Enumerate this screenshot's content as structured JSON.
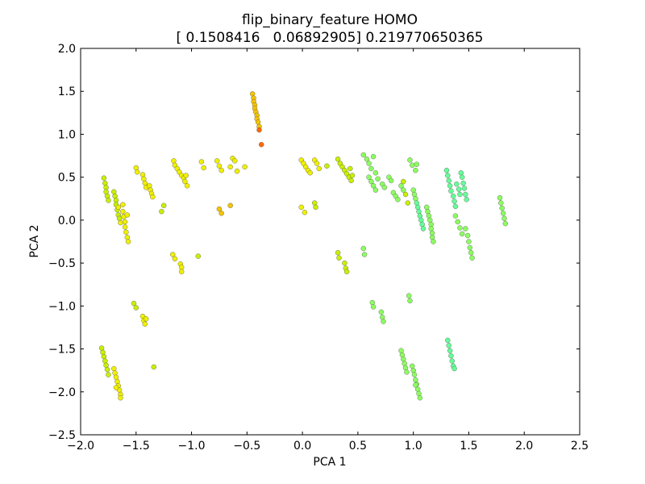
{
  "chart_data": {
    "type": "scatter",
    "title": "flip_binary_feature HOMO",
    "subtitle": "[ 0.1508416   0.06892905] 0.219770650365",
    "xlabel": "PCA 1",
    "ylabel": "PCA 2",
    "xlim": [
      -2.0,
      2.5
    ],
    "ylim": [
      -2.5,
      2.0
    ],
    "grid": false,
    "xticks": [
      "−2.0",
      "−1.5",
      "−1.0",
      "−0.5",
      "0.0",
      "0.5",
      "1.0",
      "1.5",
      "2.0",
      "2.5"
    ],
    "yticks": [
      "−2.5",
      "−2.0",
      "−1.5",
      "−1.0",
      "−0.5",
      "0.0",
      "0.5",
      "1.0",
      "1.5",
      "2.0"
    ],
    "colors": {
      "orange": "#ff6a00",
      "yellow_orange": "#f5c400",
      "yellow": "#f0f000",
      "yellow_green": "#c8f000",
      "green": "#8cff60",
      "teal_green": "#66ff99"
    },
    "points": [
      {
        "x": -0.45,
        "y": 1.47,
        "c": "yellow_orange"
      },
      {
        "x": -0.44,
        "y": 1.42,
        "c": "yellow_orange"
      },
      {
        "x": -0.44,
        "y": 1.38,
        "c": "yellow_orange"
      },
      {
        "x": -0.43,
        "y": 1.34,
        "c": "yellow_orange"
      },
      {
        "x": -0.43,
        "y": 1.3,
        "c": "yellow_orange"
      },
      {
        "x": -0.42,
        "y": 1.26,
        "c": "yellow_orange"
      },
      {
        "x": -0.41,
        "y": 1.22,
        "c": "yellow_orange"
      },
      {
        "x": -0.41,
        "y": 1.18,
        "c": "yellow_orange"
      },
      {
        "x": -0.4,
        "y": 1.14,
        "c": "yellow_orange"
      },
      {
        "x": -0.39,
        "y": 1.09,
        "c": "yellow_orange"
      },
      {
        "x": -0.39,
        "y": 1.05,
        "c": "orange"
      },
      {
        "x": -0.37,
        "y": 0.88,
        "c": "orange"
      },
      {
        "x": -1.79,
        "y": 0.49,
        "c": "yellow_green"
      },
      {
        "x": -1.78,
        "y": 0.43,
        "c": "yellow_green"
      },
      {
        "x": -1.77,
        "y": 0.38,
        "c": "yellow_green"
      },
      {
        "x": -1.77,
        "y": 0.33,
        "c": "yellow_green"
      },
      {
        "x": -1.76,
        "y": 0.28,
        "c": "yellow_green"
      },
      {
        "x": -1.75,
        "y": 0.23,
        "c": "yellow_green"
      },
      {
        "x": -1.7,
        "y": 0.33,
        "c": "yellow_green"
      },
      {
        "x": -1.69,
        "y": 0.28,
        "c": "yellow_green"
      },
      {
        "x": -1.68,
        "y": 0.23,
        "c": "yellow_green"
      },
      {
        "x": -1.68,
        "y": 0.18,
        "c": "yellow_green"
      },
      {
        "x": -1.67,
        "y": 0.12,
        "c": "yellow_green"
      },
      {
        "x": -1.66,
        "y": 0.06,
        "c": "yellow_green"
      },
      {
        "x": -1.65,
        "y": 0.02,
        "c": "yellow_green"
      },
      {
        "x": -1.66,
        "y": 0.15,
        "c": "yellow"
      },
      {
        "x": -1.64,
        "y": -0.03,
        "c": "yellow"
      },
      {
        "x": -1.62,
        "y": 0.1,
        "c": "yellow"
      },
      {
        "x": -1.61,
        "y": 0.04,
        "c": "yellow"
      },
      {
        "x": -1.6,
        "y": -0.02,
        "c": "yellow"
      },
      {
        "x": -1.6,
        "y": -0.08,
        "c": "yellow"
      },
      {
        "x": -1.59,
        "y": -0.14,
        "c": "yellow"
      },
      {
        "x": -1.58,
        "y": -0.2,
        "c": "yellow"
      },
      {
        "x": -1.57,
        "y": -0.25,
        "c": "yellow"
      },
      {
        "x": -1.62,
        "y": 0.18,
        "c": "yellow"
      },
      {
        "x": -1.58,
        "y": 0.06,
        "c": "yellow"
      },
      {
        "x": -1.5,
        "y": 0.61,
        "c": "yellow"
      },
      {
        "x": -1.49,
        "y": 0.56,
        "c": "yellow"
      },
      {
        "x": -1.44,
        "y": 0.53,
        "c": "yellow"
      },
      {
        "x": -1.43,
        "y": 0.48,
        "c": "yellow"
      },
      {
        "x": -1.42,
        "y": 0.43,
        "c": "yellow"
      },
      {
        "x": -1.41,
        "y": 0.38,
        "c": "yellow"
      },
      {
        "x": -1.38,
        "y": 0.4,
        "c": "yellow"
      },
      {
        "x": -1.37,
        "y": 0.35,
        "c": "yellow"
      },
      {
        "x": -1.36,
        "y": 0.31,
        "c": "yellow"
      },
      {
        "x": -1.35,
        "y": 0.27,
        "c": "yellow"
      },
      {
        "x": -1.25,
        "y": 0.17,
        "c": "yellow_green"
      },
      {
        "x": -1.27,
        "y": 0.1,
        "c": "yellow_green"
      },
      {
        "x": -1.16,
        "y": 0.69,
        "c": "yellow"
      },
      {
        "x": -1.15,
        "y": 0.64,
        "c": "yellow"
      },
      {
        "x": -1.13,
        "y": 0.6,
        "c": "yellow"
      },
      {
        "x": -1.11,
        "y": 0.56,
        "c": "yellow"
      },
      {
        "x": -1.09,
        "y": 0.52,
        "c": "yellow"
      },
      {
        "x": -1.07,
        "y": 0.49,
        "c": "yellow"
      },
      {
        "x": -1.05,
        "y": 0.52,
        "c": "yellow"
      },
      {
        "x": -1.06,
        "y": 0.45,
        "c": "yellow"
      },
      {
        "x": -1.04,
        "y": 0.4,
        "c": "yellow"
      },
      {
        "x": -0.91,
        "y": 0.68,
        "c": "yellow"
      },
      {
        "x": -0.89,
        "y": 0.61,
        "c": "yellow"
      },
      {
        "x": -0.77,
        "y": 0.69,
        "c": "yellow"
      },
      {
        "x": -0.75,
        "y": 0.63,
        "c": "yellow"
      },
      {
        "x": -0.73,
        "y": 0.58,
        "c": "yellow"
      },
      {
        "x": -0.63,
        "y": 0.72,
        "c": "yellow"
      },
      {
        "x": -0.61,
        "y": 0.69,
        "c": "yellow"
      },
      {
        "x": -0.65,
        "y": 0.62,
        "c": "yellow"
      },
      {
        "x": -0.59,
        "y": 0.57,
        "c": "yellow"
      },
      {
        "x": -0.52,
        "y": 0.62,
        "c": "yellow"
      },
      {
        "x": -0.75,
        "y": 0.13,
        "c": "yellow_orange"
      },
      {
        "x": -0.73,
        "y": 0.08,
        "c": "yellow_orange"
      },
      {
        "x": -0.65,
        "y": 0.17,
        "c": "yellow_orange"
      },
      {
        "x": -1.17,
        "y": -0.4,
        "c": "yellow"
      },
      {
        "x": -1.15,
        "y": -0.45,
        "c": "yellow"
      },
      {
        "x": -1.1,
        "y": -0.51,
        "c": "yellow"
      },
      {
        "x": -1.09,
        "y": -0.55,
        "c": "yellow"
      },
      {
        "x": -1.09,
        "y": -0.6,
        "c": "yellow"
      },
      {
        "x": -0.94,
        "y": -0.42,
        "c": "yellow_green"
      },
      {
        "x": -1.52,
        "y": -0.97,
        "c": "yellow_green"
      },
      {
        "x": -1.5,
        "y": -1.02,
        "c": "yellow_green"
      },
      {
        "x": -1.44,
        "y": -1.12,
        "c": "yellow"
      },
      {
        "x": -1.43,
        "y": -1.17,
        "c": "yellow"
      },
      {
        "x": -1.42,
        "y": -1.21,
        "c": "yellow"
      },
      {
        "x": -1.41,
        "y": -1.15,
        "c": "yellow"
      },
      {
        "x": -1.34,
        "y": -1.71,
        "c": "yellow_green"
      },
      {
        "x": -1.81,
        "y": -1.49,
        "c": "yellow_green"
      },
      {
        "x": -1.8,
        "y": -1.54,
        "c": "yellow_green"
      },
      {
        "x": -1.79,
        "y": -1.59,
        "c": "yellow_green"
      },
      {
        "x": -1.78,
        "y": -1.64,
        "c": "yellow_green"
      },
      {
        "x": -1.77,
        "y": -1.69,
        "c": "yellow_green"
      },
      {
        "x": -1.76,
        "y": -1.74,
        "c": "yellow_green"
      },
      {
        "x": -1.75,
        "y": -1.8,
        "c": "yellow_green"
      },
      {
        "x": -1.7,
        "y": -1.73,
        "c": "yellow"
      },
      {
        "x": -1.69,
        "y": -1.78,
        "c": "yellow"
      },
      {
        "x": -1.68,
        "y": -1.83,
        "c": "yellow"
      },
      {
        "x": -1.67,
        "y": -1.88,
        "c": "yellow"
      },
      {
        "x": -1.66,
        "y": -1.93,
        "c": "yellow"
      },
      {
        "x": -1.65,
        "y": -1.98,
        "c": "yellow"
      },
      {
        "x": -1.64,
        "y": -2.03,
        "c": "yellow"
      },
      {
        "x": -1.64,
        "y": -2.07,
        "c": "yellow"
      },
      {
        "x": -1.68,
        "y": -1.95,
        "c": "yellow"
      },
      {
        "x": -0.01,
        "y": 0.7,
        "c": "yellow"
      },
      {
        "x": 0.01,
        "y": 0.66,
        "c": "yellow"
      },
      {
        "x": 0.03,
        "y": 0.62,
        "c": "yellow"
      },
      {
        "x": 0.05,
        "y": 0.58,
        "c": "yellow"
      },
      {
        "x": 0.07,
        "y": 0.55,
        "c": "yellow"
      },
      {
        "x": 0.11,
        "y": 0.7,
        "c": "yellow"
      },
      {
        "x": 0.13,
        "y": 0.66,
        "c": "yellow"
      },
      {
        "x": 0.15,
        "y": 0.6,
        "c": "yellow"
      },
      {
        "x": 0.22,
        "y": 0.63,
        "c": "yellow_green"
      },
      {
        "x": -0.01,
        "y": 0.15,
        "c": "yellow"
      },
      {
        "x": 0.02,
        "y": 0.09,
        "c": "yellow"
      },
      {
        "x": 0.11,
        "y": 0.2,
        "c": "yellow_green"
      },
      {
        "x": 0.12,
        "y": 0.15,
        "c": "yellow_green"
      },
      {
        "x": 0.32,
        "y": 0.71,
        "c": "yellow_green"
      },
      {
        "x": 0.34,
        "y": 0.66,
        "c": "yellow_green"
      },
      {
        "x": 0.36,
        "y": 0.62,
        "c": "yellow_green"
      },
      {
        "x": 0.38,
        "y": 0.58,
        "c": "yellow_green"
      },
      {
        "x": 0.4,
        "y": 0.54,
        "c": "yellow_green"
      },
      {
        "x": 0.42,
        "y": 0.5,
        "c": "yellow_green"
      },
      {
        "x": 0.44,
        "y": 0.46,
        "c": "yellow_green"
      },
      {
        "x": 0.45,
        "y": 0.52,
        "c": "yellow_green"
      },
      {
        "x": 0.43,
        "y": 0.6,
        "c": "yellow_green"
      },
      {
        "x": 0.55,
        "y": 0.76,
        "c": "green"
      },
      {
        "x": 0.58,
        "y": 0.71,
        "c": "green"
      },
      {
        "x": 0.6,
        "y": 0.66,
        "c": "green"
      },
      {
        "x": 0.62,
        "y": 0.6,
        "c": "green"
      },
      {
        "x": 0.64,
        "y": 0.74,
        "c": "green"
      },
      {
        "x": 0.66,
        "y": 0.55,
        "c": "green"
      },
      {
        "x": 0.68,
        "y": 0.48,
        "c": "green"
      },
      {
        "x": 0.6,
        "y": 0.5,
        "c": "green"
      },
      {
        "x": 0.62,
        "y": 0.45,
        "c": "green"
      },
      {
        "x": 0.64,
        "y": 0.4,
        "c": "green"
      },
      {
        "x": 0.66,
        "y": 0.35,
        "c": "green"
      },
      {
        "x": 0.72,
        "y": 0.42,
        "c": "green"
      },
      {
        "x": 0.74,
        "y": 0.38,
        "c": "green"
      },
      {
        "x": 0.78,
        "y": 0.5,
        "c": "green"
      },
      {
        "x": 0.8,
        "y": 0.46,
        "c": "green"
      },
      {
        "x": 0.82,
        "y": 0.32,
        "c": "green"
      },
      {
        "x": 0.84,
        "y": 0.28,
        "c": "green"
      },
      {
        "x": 0.86,
        "y": 0.24,
        "c": "green"
      },
      {
        "x": 0.89,
        "y": 0.4,
        "c": "green"
      },
      {
        "x": 0.91,
        "y": 0.35,
        "c": "green"
      },
      {
        "x": 0.91,
        "y": 0.45,
        "c": "yellow_green"
      },
      {
        "x": 0.93,
        "y": 0.3,
        "c": "yellow_green"
      },
      {
        "x": 0.95,
        "y": 0.2,
        "c": "yellow_green"
      },
      {
        "x": 0.97,
        "y": 0.7,
        "c": "green"
      },
      {
        "x": 0.99,
        "y": 0.64,
        "c": "green"
      },
      {
        "x": 1.02,
        "y": 0.58,
        "c": "green"
      },
      {
        "x": 1.03,
        "y": 0.65,
        "c": "green"
      },
      {
        "x": 1.0,
        "y": 0.35,
        "c": "green"
      },
      {
        "x": 1.01,
        "y": 0.3,
        "c": "green"
      },
      {
        "x": 1.02,
        "y": 0.25,
        "c": "green"
      },
      {
        "x": 1.03,
        "y": 0.2,
        "c": "teal_green"
      },
      {
        "x": 1.04,
        "y": 0.15,
        "c": "teal_green"
      },
      {
        "x": 1.05,
        "y": 0.1,
        "c": "teal_green"
      },
      {
        "x": 1.06,
        "y": 0.05,
        "c": "teal_green"
      },
      {
        "x": 1.07,
        "y": 0.0,
        "c": "teal_green"
      },
      {
        "x": 1.08,
        "y": -0.05,
        "c": "teal_green"
      },
      {
        "x": 1.09,
        "y": -0.1,
        "c": "teal_green"
      },
      {
        "x": 1.12,
        "y": 0.15,
        "c": "green"
      },
      {
        "x": 1.13,
        "y": 0.1,
        "c": "green"
      },
      {
        "x": 1.14,
        "y": 0.05,
        "c": "green"
      },
      {
        "x": 1.15,
        "y": 0.0,
        "c": "green"
      },
      {
        "x": 1.16,
        "y": -0.05,
        "c": "green"
      },
      {
        "x": 1.16,
        "y": -0.1,
        "c": "green"
      },
      {
        "x": 1.17,
        "y": -0.15,
        "c": "green"
      },
      {
        "x": 1.17,
        "y": -0.2,
        "c": "green"
      },
      {
        "x": 1.18,
        "y": -0.25,
        "c": "green"
      },
      {
        "x": 1.3,
        "y": 0.58,
        "c": "teal_green"
      },
      {
        "x": 1.31,
        "y": 0.52,
        "c": "teal_green"
      },
      {
        "x": 1.32,
        "y": 0.46,
        "c": "teal_green"
      },
      {
        "x": 1.33,
        "y": 0.4,
        "c": "teal_green"
      },
      {
        "x": 1.34,
        "y": 0.34,
        "c": "teal_green"
      },
      {
        "x": 1.36,
        "y": 0.28,
        "c": "teal_green"
      },
      {
        "x": 1.37,
        "y": 0.22,
        "c": "teal_green"
      },
      {
        "x": 1.38,
        "y": 0.16,
        "c": "teal_green"
      },
      {
        "x": 1.39,
        "y": 0.42,
        "c": "teal_green"
      },
      {
        "x": 1.41,
        "y": 0.36,
        "c": "teal_green"
      },
      {
        "x": 1.42,
        "y": 0.3,
        "c": "teal_green"
      },
      {
        "x": 1.43,
        "y": 0.55,
        "c": "teal_green"
      },
      {
        "x": 1.44,
        "y": 0.5,
        "c": "teal_green"
      },
      {
        "x": 1.45,
        "y": 0.43,
        "c": "teal_green"
      },
      {
        "x": 1.46,
        "y": 0.37,
        "c": "teal_green"
      },
      {
        "x": 1.47,
        "y": 0.3,
        "c": "teal_green"
      },
      {
        "x": 1.48,
        "y": 0.24,
        "c": "teal_green"
      },
      {
        "x": 1.38,
        "y": 0.05,
        "c": "green"
      },
      {
        "x": 1.4,
        "y": -0.02,
        "c": "green"
      },
      {
        "x": 1.42,
        "y": -0.09,
        "c": "green"
      },
      {
        "x": 1.44,
        "y": -0.16,
        "c": "green"
      },
      {
        "x": 1.47,
        "y": -0.1,
        "c": "green"
      },
      {
        "x": 1.49,
        "y": -0.18,
        "c": "green"
      },
      {
        "x": 1.5,
        "y": -0.25,
        "c": "green"
      },
      {
        "x": 1.51,
        "y": -0.32,
        "c": "green"
      },
      {
        "x": 1.52,
        "y": -0.38,
        "c": "green"
      },
      {
        "x": 1.53,
        "y": -0.44,
        "c": "green"
      },
      {
        "x": 1.78,
        "y": 0.26,
        "c": "green"
      },
      {
        "x": 1.79,
        "y": 0.2,
        "c": "green"
      },
      {
        "x": 1.8,
        "y": 0.14,
        "c": "green"
      },
      {
        "x": 1.81,
        "y": 0.08,
        "c": "green"
      },
      {
        "x": 1.82,
        "y": 0.02,
        "c": "green"
      },
      {
        "x": 1.83,
        "y": -0.04,
        "c": "green"
      },
      {
        "x": 0.32,
        "y": -0.38,
        "c": "yellow_green"
      },
      {
        "x": 0.33,
        "y": -0.44,
        "c": "yellow_green"
      },
      {
        "x": 0.38,
        "y": -0.5,
        "c": "yellow_green"
      },
      {
        "x": 0.39,
        "y": -0.56,
        "c": "yellow_green"
      },
      {
        "x": 0.4,
        "y": -0.6,
        "c": "yellow_green"
      },
      {
        "x": 0.55,
        "y": -0.33,
        "c": "green"
      },
      {
        "x": 0.56,
        "y": -0.4,
        "c": "green"
      },
      {
        "x": 0.63,
        "y": -0.96,
        "c": "green"
      },
      {
        "x": 0.64,
        "y": -1.01,
        "c": "green"
      },
      {
        "x": 0.71,
        "y": -1.07,
        "c": "green"
      },
      {
        "x": 0.72,
        "y": -1.13,
        "c": "green"
      },
      {
        "x": 0.73,
        "y": -1.18,
        "c": "green"
      },
      {
        "x": 0.96,
        "y": -0.88,
        "c": "green"
      },
      {
        "x": 0.97,
        "y": -0.94,
        "c": "green"
      },
      {
        "x": 0.89,
        "y": -1.52,
        "c": "green"
      },
      {
        "x": 0.9,
        "y": -1.57,
        "c": "green"
      },
      {
        "x": 0.91,
        "y": -1.62,
        "c": "green"
      },
      {
        "x": 0.92,
        "y": -1.67,
        "c": "green"
      },
      {
        "x": 0.93,
        "y": -1.72,
        "c": "green"
      },
      {
        "x": 0.94,
        "y": -1.77,
        "c": "green"
      },
      {
        "x": 0.99,
        "y": -1.7,
        "c": "green"
      },
      {
        "x": 1.0,
        "y": -1.75,
        "c": "green"
      },
      {
        "x": 1.01,
        "y": -1.8,
        "c": "green"
      },
      {
        "x": 1.02,
        "y": -1.86,
        "c": "green"
      },
      {
        "x": 1.03,
        "y": -1.91,
        "c": "green"
      },
      {
        "x": 1.04,
        "y": -1.97,
        "c": "green"
      },
      {
        "x": 1.05,
        "y": -2.02,
        "c": "green"
      },
      {
        "x": 1.06,
        "y": -2.07,
        "c": "green"
      },
      {
        "x": 1.02,
        "y": -1.92,
        "c": "green"
      },
      {
        "x": 1.31,
        "y": -1.4,
        "c": "teal_green"
      },
      {
        "x": 1.32,
        "y": -1.46,
        "c": "teal_green"
      },
      {
        "x": 1.33,
        "y": -1.52,
        "c": "teal_green"
      },
      {
        "x": 1.34,
        "y": -1.58,
        "c": "teal_green"
      },
      {
        "x": 1.35,
        "y": -1.64,
        "c": "teal_green"
      },
      {
        "x": 1.36,
        "y": -1.7,
        "c": "teal_green"
      },
      {
        "x": 1.37,
        "y": -1.73,
        "c": "teal_green"
      }
    ]
  }
}
